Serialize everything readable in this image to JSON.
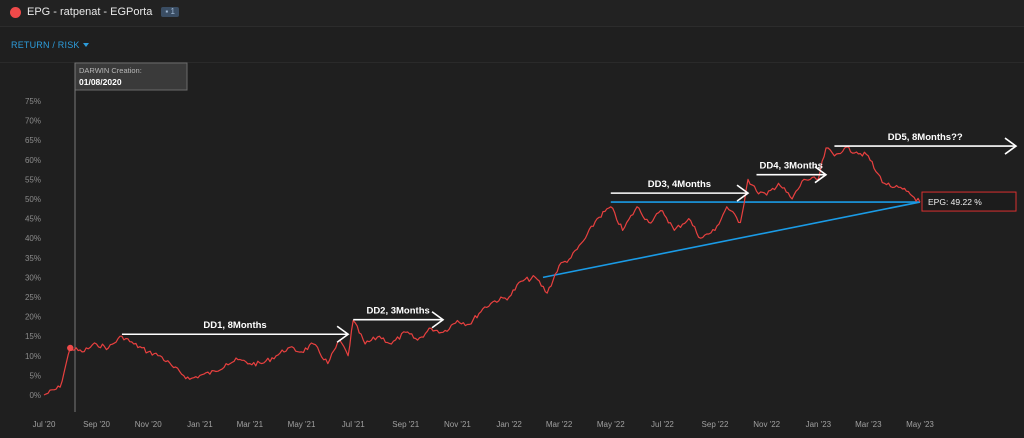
{
  "window": {
    "title": "EPG - ratpenat - EGPorta",
    "badge": "",
    "status_color": "#ef4a4a"
  },
  "menu": {
    "return_risk_label": "RETURN / RISK"
  },
  "creation": {
    "label": "DARWIN Creation:",
    "date": "01/08/2020"
  },
  "current_label": "EPG: 49.22 %",
  "annotations": [
    "DD1, 8Months",
    "DD2, 3Months",
    "DD3, 4Months",
    "DD4, 3Months",
    "DD5, 8Months??"
  ],
  "chart_data": {
    "type": "line",
    "x_tick_labels": [
      "Jul '20",
      "Sep '20",
      "Nov '20",
      "Jan '21",
      "Mar '21",
      "May '21",
      "Jul '21",
      "Sep '21",
      "Nov '21",
      "Jan '22",
      "Mar '22",
      "May '22",
      "Jul '22",
      "Sep '22",
      "Nov '22",
      "Jan '23",
      "Mar '23",
      "May '23"
    ],
    "y_tick_labels": [
      "0%",
      "5%",
      "10%",
      "15%",
      "20%",
      "25%",
      "30%",
      "35%",
      "40%",
      "45%",
      "50%",
      "55%",
      "60%",
      "65%",
      "70%",
      "75%"
    ],
    "ylim": [
      0,
      75
    ],
    "grid": false,
    "line_color": "#e8403f",
    "trendline_color": "#1a9be6",
    "series": [
      {
        "x": [
          "2020-07-01",
          "2020-07-20",
          "2020-08-01",
          "2020-08-15",
          "2020-09-01",
          "2020-09-15",
          "2020-10-01",
          "2020-10-15",
          "2020-11-01",
          "2020-11-15",
          "2020-12-01",
          "2020-12-20",
          "2021-01-01",
          "2021-01-20",
          "2021-02-01",
          "2021-02-15",
          "2021-03-01",
          "2021-03-15",
          "2021-04-01",
          "2021-04-15",
          "2021-05-01",
          "2021-05-15",
          "2021-06-01",
          "2021-06-15",
          "2021-06-25",
          "2021-07-01",
          "2021-07-15",
          "2021-08-01",
          "2021-08-15",
          "2021-09-01",
          "2021-09-15",
          "2021-10-01",
          "2021-10-15",
          "2021-11-01",
          "2021-11-15",
          "2021-12-01",
          "2021-12-15",
          "2022-01-01",
          "2022-01-15",
          "2022-02-01",
          "2022-02-15",
          "2022-03-01",
          "2022-03-15",
          "2022-04-01",
          "2022-04-15",
          "2022-05-01",
          "2022-05-15",
          "2022-06-01",
          "2022-06-15",
          "2022-07-01",
          "2022-07-15",
          "2022-08-01",
          "2022-08-15",
          "2022-09-01",
          "2022-09-15",
          "2022-10-01",
          "2022-10-10",
          "2022-10-20",
          "2022-11-01",
          "2022-11-15",
          "2022-12-01",
          "2022-12-15",
          "2023-01-01",
          "2023-01-10",
          "2023-01-20",
          "2023-02-01",
          "2023-02-15",
          "2023-03-01",
          "2023-03-10",
          "2023-03-20",
          "2023-04-01",
          "2023-04-15",
          "2023-05-01"
        ],
        "values": [
          0,
          2,
          12,
          11,
          13,
          12,
          15,
          13,
          11,
          10,
          7,
          4,
          5,
          6,
          8,
          9,
          8,
          8,
          10,
          12,
          11,
          13,
          8,
          14,
          10,
          19,
          13,
          15,
          13,
          16,
          14,
          17,
          16,
          19,
          18,
          22,
          24,
          25,
          29,
          30,
          26,
          33,
          35,
          40,
          45,
          48,
          42,
          48,
          44,
          47,
          42,
          45,
          40,
          42,
          48,
          44,
          55,
          52,
          51,
          54,
          50,
          55,
          55,
          63,
          61,
          63,
          62,
          61,
          57,
          54,
          53,
          52,
          49.22
        ]
      }
    ],
    "trendlines": [
      {
        "x": [
          "2022-02-10",
          "2023-05-01"
        ],
        "values": [
          30,
          49.22
        ]
      },
      {
        "x": [
          "2022-05-01",
          "2023-05-01"
        ],
        "values": [
          49.22,
          49.22
        ]
      }
    ]
  }
}
